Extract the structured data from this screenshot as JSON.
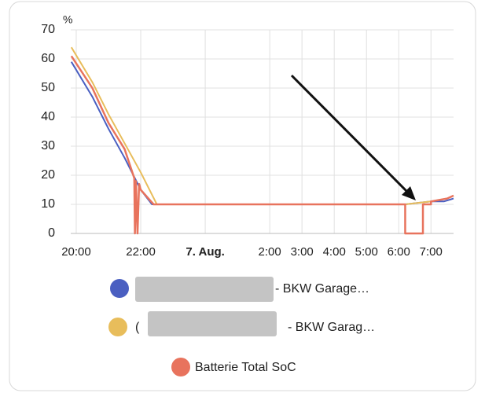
{
  "chart_data": {
    "type": "line",
    "y_label": "%",
    "xlim": [
      19.83,
      31.7
    ],
    "xticks": [
      {
        "value": 20,
        "label": "20:00"
      },
      {
        "value": 22,
        "label": "22:00"
      },
      {
        "value": 24,
        "label": "7. Aug."
      },
      {
        "value": 26,
        "label": "2:00"
      },
      {
        "value": 27,
        "label": "3:00"
      },
      {
        "value": 28,
        "label": "4:00"
      },
      {
        "value": 29,
        "label": "5:00"
      },
      {
        "value": 30,
        "label": "6:00"
      },
      {
        "value": 31,
        "label": "7:00"
      }
    ],
    "ylim": [
      0,
      70
    ],
    "yticks": [
      0,
      10,
      20,
      30,
      40,
      50,
      60,
      70
    ],
    "grid": true,
    "series": [
      {
        "name": "- BKW Garage…",
        "color": "#4a5fc1",
        "x": [
          19.85,
          20.5,
          21,
          21.5,
          22,
          22.35,
          30.2,
          31.0,
          31.4,
          31.7
        ],
        "values": [
          59,
          47,
          36,
          26,
          15,
          10,
          10,
          11,
          11,
          12
        ]
      },
      {
        "name": "- BKW Garag…",
        "color": "#e8bd5b",
        "x": [
          19.85,
          20.5,
          21,
          21.5,
          22,
          22.5,
          30.2,
          31.0,
          31.5,
          31.7
        ],
        "values": [
          64,
          52,
          41,
          31,
          21,
          10,
          10,
          11,
          12,
          13
        ]
      },
      {
        "name": "Batterie Total SoC",
        "color": "#e8735d",
        "x": [
          19.85,
          20.5,
          21,
          21.5,
          21.8,
          21.82,
          21.85,
          21.9,
          21.95,
          22.0,
          22.4,
          30.2,
          30.2,
          30.75,
          30.75,
          31.0,
          31.0,
          31.5,
          31.7
        ],
        "values": [
          61,
          50,
          38,
          29,
          19,
          0,
          18,
          0,
          17,
          15,
          10,
          10,
          0,
          0,
          10,
          10,
          11,
          12,
          13
        ]
      }
    ]
  }
}
